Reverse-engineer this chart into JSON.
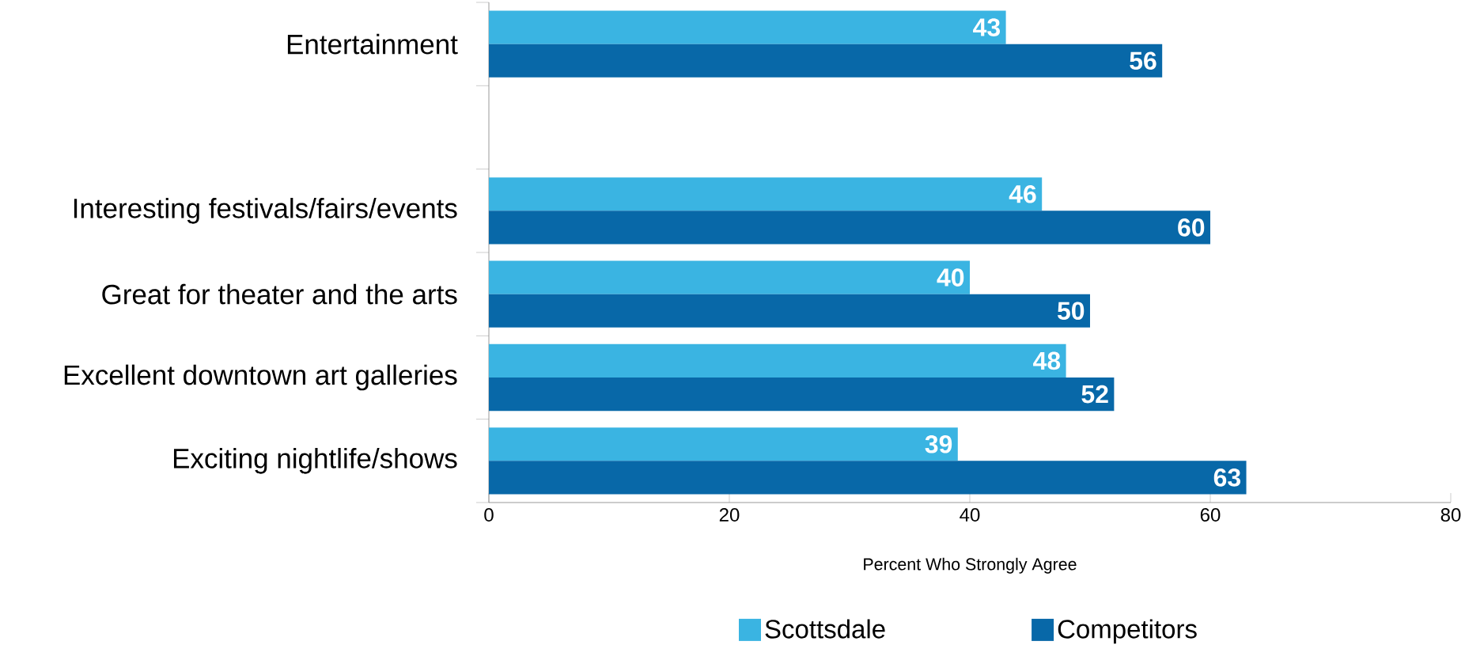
{
  "chart_data": {
    "type": "bar",
    "orientation": "horizontal",
    "xlabel": "Percent Who Strongly Agree",
    "categories": [
      "Entertainment",
      null,
      "Interesting festivals/fairs/events",
      "Great for theater and the arts",
      "Excellent downtown art galleries",
      "Exciting nightlife/shows"
    ],
    "series": [
      {
        "name": "Scottsdale",
        "color": "#3ab4e2",
        "values": [
          43,
          null,
          46,
          40,
          48,
          39
        ]
      },
      {
        "name": "Competitors",
        "color": "#0868a8",
        "values": [
          56,
          null,
          60,
          50,
          52,
          63
        ]
      }
    ],
    "xlim": [
      0,
      80
    ],
    "xticks": [
      0,
      20,
      40,
      60,
      80
    ],
    "data_labels": true,
    "legend": "bottom",
    "grid": false
  }
}
